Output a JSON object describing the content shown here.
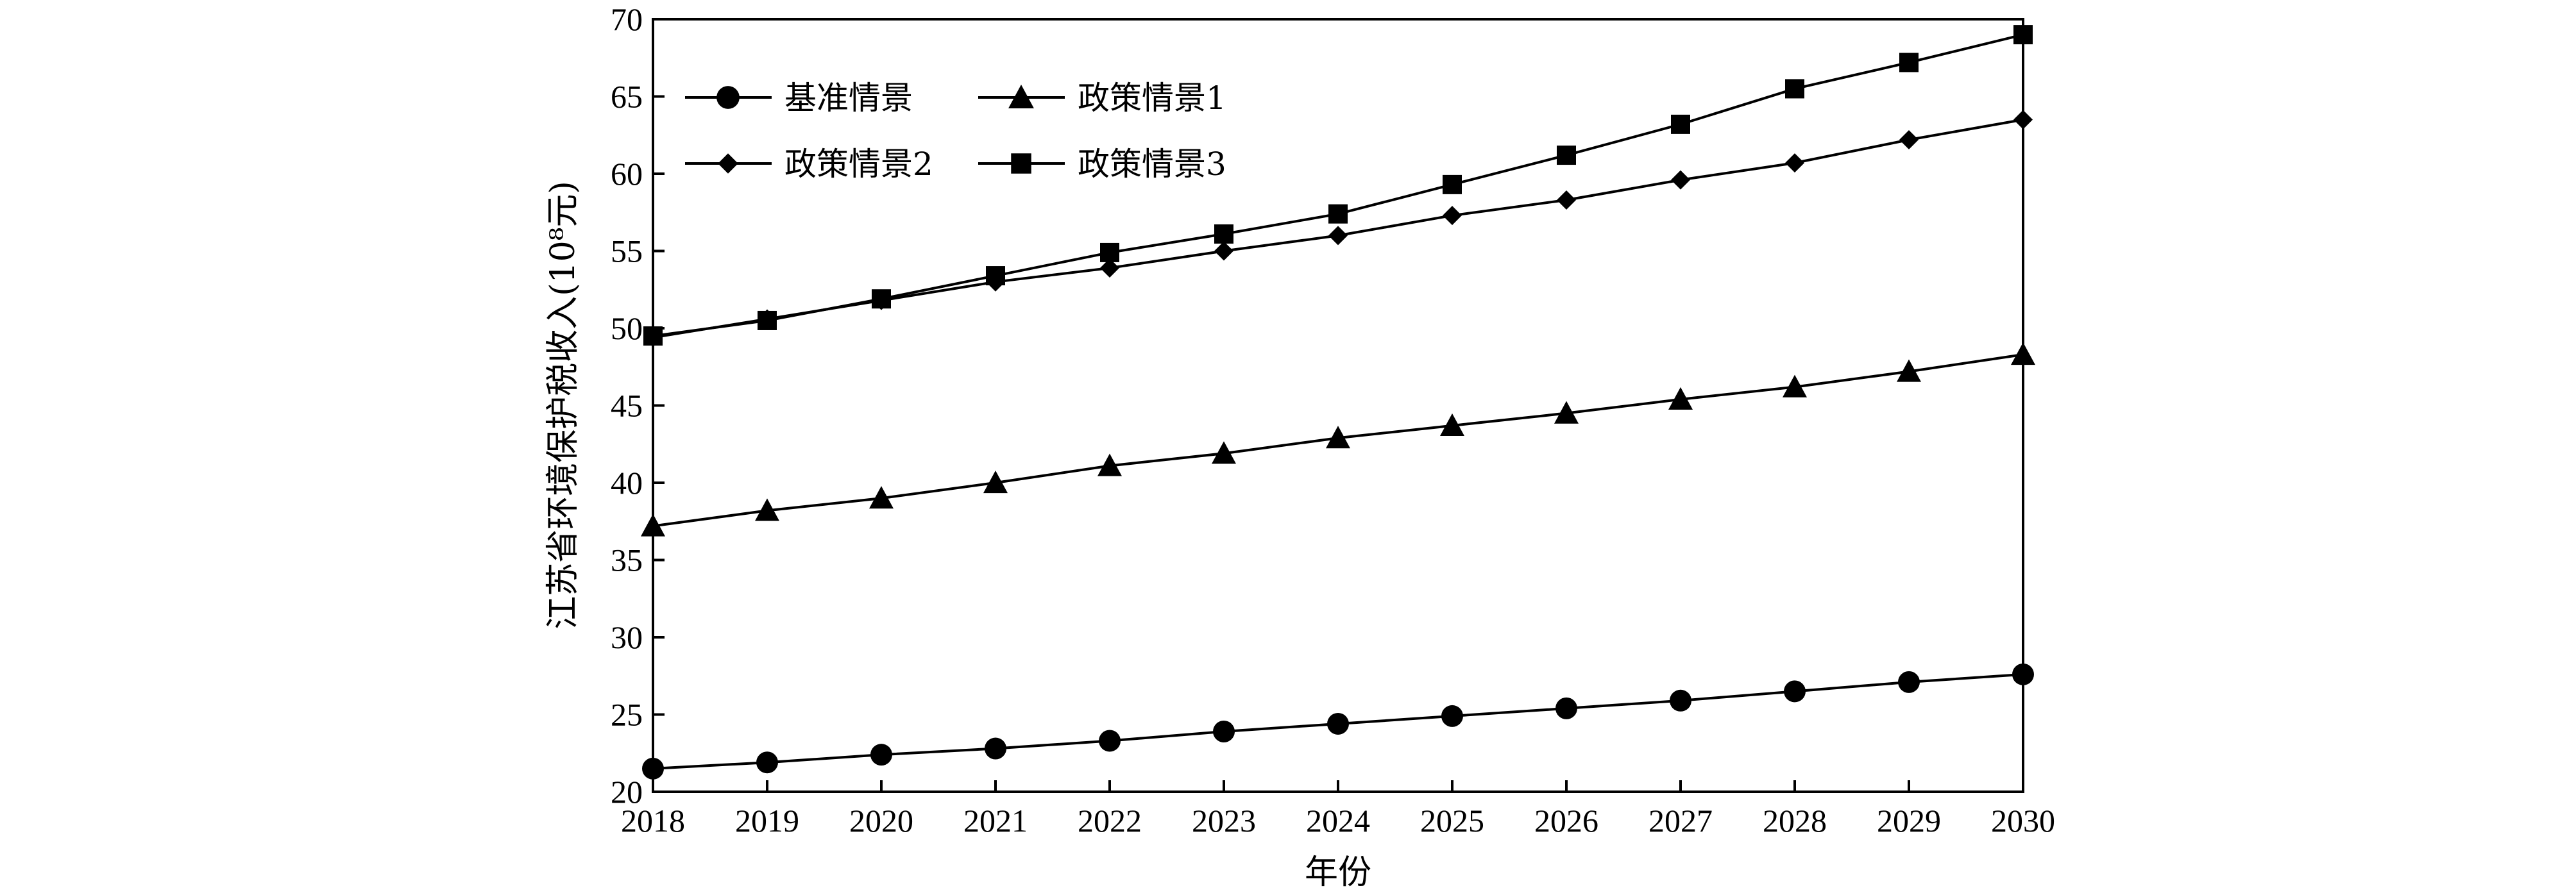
{
  "chart_data": {
    "type": "line",
    "xlabel": "年份",
    "ylabel": "江苏省环境保护税收入(10⁸元)",
    "xlim": [
      2018,
      2030
    ],
    "ylim": [
      20,
      70
    ],
    "x_ticks": [
      2018,
      2019,
      2020,
      2021,
      2022,
      2023,
      2024,
      2025,
      2026,
      2027,
      2028,
      2029,
      2030
    ],
    "y_ticks": [
      20,
      25,
      30,
      35,
      40,
      45,
      50,
      55,
      60,
      65,
      70
    ],
    "grid": false,
    "legend_position": "top-left",
    "x": [
      2018,
      2019,
      2020,
      2021,
      2022,
      2023,
      2024,
      2025,
      2026,
      2027,
      2028,
      2029,
      2030
    ],
    "series": [
      {
        "name": "基准情景",
        "marker": "circle",
        "color": "#000000",
        "values": [
          21.5,
          21.9,
          22.4,
          22.8,
          23.3,
          23.9,
          24.4,
          24.9,
          25.4,
          25.9,
          26.5,
          27.1,
          27.6
        ]
      },
      {
        "name": "政策情景1",
        "marker": "triangle",
        "color": "#000000",
        "values": [
          37.2,
          38.2,
          39.0,
          40.0,
          41.1,
          41.9,
          42.9,
          43.7,
          44.5,
          45.4,
          46.2,
          47.2,
          48.3
        ]
      },
      {
        "name": "政策情景2",
        "marker": "diamond",
        "color": "#000000",
        "values": [
          49.4,
          50.6,
          51.8,
          53.0,
          53.9,
          55.0,
          56.0,
          57.3,
          58.3,
          59.6,
          60.7,
          62.2,
          63.5
        ]
      },
      {
        "name": "政策情景3",
        "marker": "square",
        "color": "#000000",
        "values": [
          49.5,
          50.5,
          51.9,
          53.4,
          54.9,
          56.1,
          57.4,
          59.3,
          61.2,
          63.2,
          65.5,
          67.2,
          69.0
        ]
      }
    ]
  }
}
